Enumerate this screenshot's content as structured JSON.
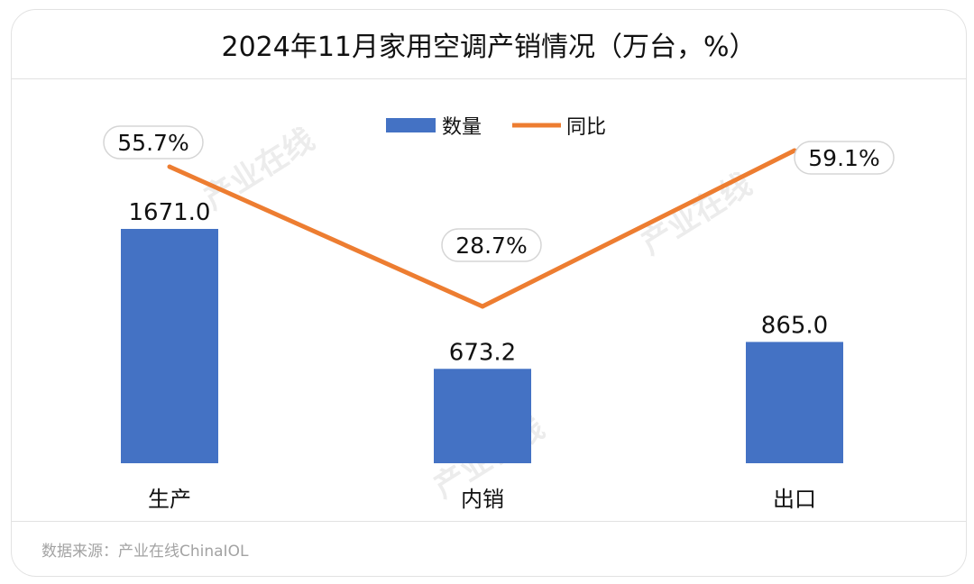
{
  "title": "2024年11月家用空调产销情况（万台，%）",
  "source": "数据来源：产业在线ChinaIOL",
  "watermark": "产业在线",
  "chart_data": {
    "type": "bar",
    "categories": [
      "生产",
      "内销",
      "出口"
    ],
    "series": [
      {
        "name": "数量",
        "type": "bar",
        "values": [
          1671.0,
          673.2,
          865.0
        ],
        "labels": [
          "1671.0",
          "673.2",
          "865.0"
        ]
      },
      {
        "name": "同比",
        "type": "line",
        "values": [
          55.7,
          28.7,
          59.1
        ],
        "labels": [
          "55.7%",
          "28.7%",
          "59.1%"
        ]
      }
    ],
    "colors": {
      "bar": "#4472c4",
      "line": "#ed7d31"
    },
    "legend": "top-center"
  }
}
